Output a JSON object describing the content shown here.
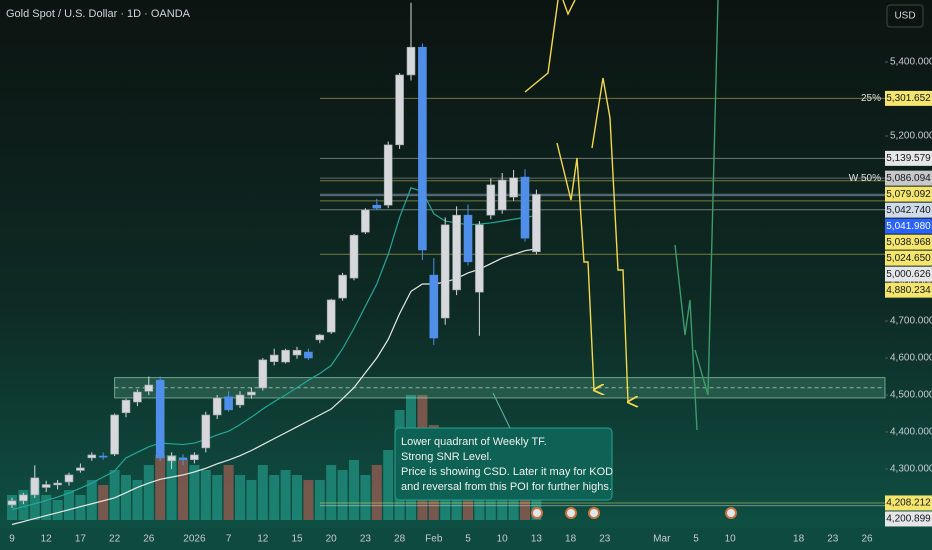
{
  "chart_data": {
    "type": "candlestick",
    "title": "Gold Spot / U.S. Dollar · 1D · OANDA",
    "currency": "USD",
    "categories": [
      "9",
      null,
      null,
      "12",
      null,
      null,
      "17",
      null,
      null,
      "22",
      null,
      null,
      "26",
      null,
      null,
      null,
      "2026",
      null,
      null,
      "7",
      null,
      null,
      "12",
      null,
      null,
      "15",
      null,
      null,
      "20",
      null,
      null,
      "23",
      null,
      null,
      "28",
      null,
      null,
      "Feb",
      null,
      null,
      "5",
      null,
      null,
      "10",
      null,
      null,
      "13",
      null,
      null,
      "18",
      null,
      null,
      "23",
      null,
      null,
      null,
      null,
      "Mar",
      null,
      null,
      "5",
      null,
      null,
      "10",
      null,
      null,
      null,
      null,
      null,
      "18",
      null,
      null,
      "23",
      null,
      null,
      "26"
    ],
    "open": [
      4203,
      4214,
      4230,
      4250,
      4257,
      4265,
      4296,
      4330,
      4335,
      4340,
      4452,
      4481,
      4510,
      4540,
      4322,
      4330,
      4325,
      4357,
      4446,
      4495,
      4473,
      4500,
      4519,
      4590,
      4589,
      4608,
      4616,
      4649,
      4670,
      4762,
      4816,
      4940,
      5013,
      5013,
      5176,
      5365,
      5440,
      4824,
      4708,
      4784,
      4986,
      4778,
      4986,
      5000,
      5035,
      5089,
      4887,
      null,
      null,
      null,
      null,
      null,
      null,
      null,
      null,
      null,
      null,
      null,
      null,
      null,
      null,
      null,
      null,
      null,
      null,
      null,
      null,
      null,
      null,
      null,
      null,
      null,
      null,
      null,
      null,
      null
    ],
    "high": [
      4222,
      4235,
      4310,
      4268,
      4270,
      4290,
      4315,
      4345,
      4345,
      4450,
      4490,
      4515,
      4550,
      4550,
      4345,
      4340,
      4345,
      4455,
      4500,
      4510,
      4510,
      4520,
      4600,
      4625,
      4625,
      4630,
      4625,
      4665,
      4760,
      4830,
      4935,
      5005,
      5030,
      5185,
      5370,
      5560,
      5450,
      4870,
      4980,
      5010,
      5015,
      4970,
      5085,
      5100,
      5108,
      5110,
      5055,
      null,
      null,
      null,
      null,
      null,
      null,
      null,
      null,
      null,
      null,
      null,
      null,
      null,
      null,
      null,
      null,
      null,
      null,
      null,
      null,
      null,
      null,
      null,
      null,
      null,
      null,
      null,
      null,
      null
    ],
    "low": [
      4195,
      4205,
      4222,
      4238,
      4245,
      4255,
      4290,
      4322,
      4325,
      4335,
      4440,
      4470,
      4500,
      4322,
      4300,
      4310,
      4315,
      4345,
      4435,
      4455,
      4465,
      4490,
      4512,
      4580,
      4585,
      4598,
      4595,
      4640,
      4665,
      4755,
      4810,
      4935,
      5000,
      5005,
      5165,
      5350,
      4865,
      4635,
      4690,
      4770,
      4850,
      4660,
      4975,
      4990,
      5025,
      4915,
      4880,
      null,
      null,
      null,
      null,
      null,
      null,
      null,
      null,
      null,
      null,
      null,
      null,
      null,
      null,
      null,
      null,
      null,
      null,
      null,
      null,
      null,
      null,
      null,
      null,
      null,
      null,
      null,
      null,
      null
    ],
    "close": [
      4214,
      4230,
      4276,
      4258,
      4262,
      4284,
      4303,
      4338,
      4332,
      4446,
      4486,
      4508,
      4527,
      4330,
      4335,
      4325,
      4338,
      4446,
      4492,
      4460,
      4500,
      4508,
      4595,
      4608,
      4621,
      4621,
      4600,
      4662,
      4757,
      4824,
      4932,
      5000,
      5005,
      5176,
      5365,
      5440,
      4892,
      4654,
      4960,
      4986,
      4860,
      4960,
      5068,
      5081,
      5087,
      4924,
      5041.98,
      null,
      null,
      null,
      null,
      null,
      null,
      null,
      null,
      null,
      null,
      null,
      null,
      null,
      null,
      null,
      null,
      null,
      null,
      null,
      null,
      null,
      null,
      null,
      null,
      null,
      null,
      null,
      null,
      null
    ],
    "colors": {
      "up": "#d6d8dc",
      "down": "#4f8fea"
    },
    "volume": [
      25000,
      30000,
      40000,
      25000,
      20000,
      30000,
      25000,
      40000,
      35000,
      50000,
      45000,
      40000,
      55000,
      65000,
      65000,
      60000,
      55000,
      50000,
      45000,
      55000,
      45000,
      40000,
      55000,
      45000,
      50000,
      45000,
      40000,
      40000,
      55000,
      50000,
      60000,
      45000,
      55000,
      70000,
      110000,
      125000,
      125000,
      95000,
      70000,
      80000,
      60000,
      70000,
      55000,
      45000,
      40000,
      50000,
      25000,
      null,
      null,
      null,
      null,
      null,
      null,
      null,
      null,
      null,
      null,
      null,
      null,
      null,
      null,
      null,
      null,
      null,
      null,
      null,
      null,
      null,
      null,
      null,
      null,
      null,
      null,
      null,
      null,
      null
    ],
    "volume_colors": {
      "up": "#1f8a7a",
      "down": "#8a5a50"
    },
    "moving_averages": [
      {
        "color": "#26a69a",
        "values": [
          4190,
          4198,
          4206,
          4215,
          4224,
          4235,
          4248,
          4262,
          4278,
          4295,
          4330,
          4345,
          4360,
          4370,
          4368,
          4366,
          4370,
          4380,
          4392,
          4402,
          4420,
          4440,
          4462,
          4482,
          4500,
          4520,
          4540,
          4558,
          4580,
          4625,
          4680,
          4740,
          4800,
          4880,
          4980,
          5060,
          5050,
          4990,
          4970,
          4965,
          4960,
          4962,
          4965,
          4970,
          4975,
          4980,
          4985,
          null,
          null,
          null,
          null,
          null,
          null,
          null,
          null,
          null,
          null,
          null,
          null,
          null,
          null,
          null,
          null,
          null,
          null,
          null,
          null,
          null,
          null,
          null,
          null,
          null,
          null,
          null,
          null,
          null
        ]
      },
      {
        "color": "#e8e8e8",
        "values": [
          4150,
          4158,
          4166,
          4174,
          4182,
          4190,
          4198,
          4206,
          4214,
          4222,
          4236,
          4250,
          4262,
          4272,
          4278,
          4284,
          4292,
          4302,
          4314,
          4324,
          4336,
          4350,
          4366,
          4382,
          4398,
          4414,
          4430,
          4446,
          4462,
          4490,
          4520,
          4560,
          4600,
          4650,
          4720,
          4780,
          4800,
          4800,
          4805,
          4815,
          4830,
          4840,
          4855,
          4870,
          4880,
          4890,
          4895,
          null,
          null,
          null,
          null,
          null,
          null,
          null,
          null,
          null,
          null,
          null,
          null,
          null,
          null,
          null,
          null,
          null,
          null,
          null,
          null,
          null,
          null,
          null,
          null,
          null,
          null,
          null,
          null,
          null
        ]
      }
    ],
    "ylim": [
      4140.5,
      5567.6
    ],
    "yticks": [
      {
        "value": 5400,
        "label": "5,400.000"
      },
      {
        "value": 5200,
        "label": "5,200.000"
      },
      {
        "value": 4800,
        "label": "4,800.000"
      },
      {
        "value": 4700,
        "label": "4,700.000"
      },
      {
        "value": 4600,
        "label": "4,600.000"
      },
      {
        "value": 4500,
        "label": "4,500.000"
      },
      {
        "value": 4400,
        "label": "4,400.000"
      },
      {
        "value": 4300,
        "label": "4,300.000"
      }
    ],
    "levels": [
      {
        "value": 5301.652,
        "label": "5,301.652",
        "tag": "25%",
        "color": "#f5e56b"
      },
      {
        "value": 5139.579,
        "label": "5,139.579",
        "color": "#e6e6e6"
      },
      {
        "value": 5086.094,
        "label": "5,086.094",
        "tag": "W 50%",
        "color": "#c8c8c8"
      },
      {
        "value": 5079.092,
        "label": "5,079.092",
        "color": "#f5e56b"
      },
      {
        "value": 5042.74,
        "label": "5,042.740",
        "color": "#cfdbe6"
      },
      {
        "value": 5041.98,
        "label": "5,041.980",
        "color": "#2962ff"
      },
      {
        "value": 5038.968,
        "label": "5,038.968",
        "color": "#f5e56b"
      },
      {
        "value": 5024.65,
        "label": "5,024.650",
        "color": "#f5e56b"
      },
      {
        "value": 5000.626,
        "label": "5,000.626",
        "color": "#e6e6e6"
      },
      {
        "value": 4880.234,
        "label": "4,880.234",
        "color": "#f5e56b"
      },
      {
        "value": 4208.212,
        "label": "4,208.212",
        "color": "#f5e56b"
      },
      {
        "value": 4200.899,
        "label": "4,200.899",
        "color": "#e6e6e6"
      }
    ],
    "zone": [
      4492,
      4547
    ],
    "annotation": [
      "Lower quadrant of Weekly TF.",
      "Strong SNR Level.",
      "Price is showing CSD. Later it may for KOD",
      "and reversal from this POI for further highs."
    ]
  }
}
